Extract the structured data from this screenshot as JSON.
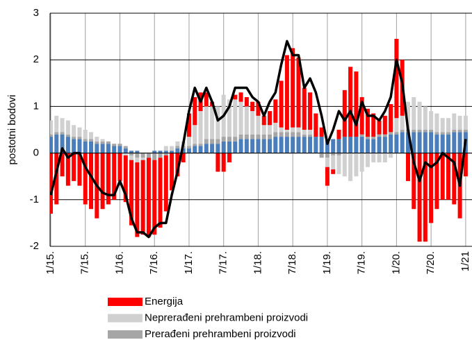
{
  "chart_data": {
    "type": "bar",
    "stacked": true,
    "y_label": "postotni bodovi",
    "ylim": [
      -2,
      3
    ],
    "yticks": [
      -2,
      -1,
      0,
      1,
      2,
      3
    ],
    "grid": true,
    "categories": [
      "1/15.",
      null,
      null,
      null,
      null,
      null,
      "7/15.",
      null,
      null,
      null,
      null,
      null,
      "1/16.",
      null,
      null,
      null,
      null,
      null,
      "7/16.",
      null,
      null,
      null,
      null,
      null,
      "1/17.",
      null,
      null,
      null,
      null,
      null,
      "7/17.",
      null,
      null,
      null,
      null,
      null,
      "1/18.",
      null,
      null,
      null,
      null,
      null,
      "7/18.",
      null,
      null,
      null,
      null,
      null,
      "1/19.",
      null,
      null,
      null,
      null,
      null,
      "7/19.",
      null,
      null,
      null,
      null,
      null,
      "1/20.",
      null,
      null,
      null,
      null,
      null,
      "7/20.",
      null,
      null,
      null,
      null,
      null,
      "1/21"
    ],
    "series": [
      {
        "color": "#4a7ebb",
        "values": [
          0.35,
          0.4,
          0.4,
          0.35,
          0.3,
          0.3,
          0.25,
          0.25,
          0.2,
          0.2,
          0.2,
          0.15,
          0.15,
          0.1,
          0.05,
          0.05,
          0,
          0,
          0.05,
          0.05,
          0.05,
          0.05,
          0.1,
          0.1,
          0.1,
          0.15,
          0.15,
          0.2,
          0.2,
          0.2,
          0.25,
          0.25,
          0.25,
          0.3,
          0.3,
          0.3,
          0.3,
          0.3,
          0.3,
          0.35,
          0.35,
          0.35,
          0.35,
          0.35,
          0.35,
          0.35,
          0.35,
          0.35,
          0.3,
          0.3,
          0.3,
          0.35,
          0.35,
          0.35,
          0.35,
          0.3,
          0.3,
          0.35,
          0.35,
          0.4,
          0.4,
          0.45,
          0.45,
          0.45,
          0.45,
          0.45,
          0.45,
          0.4,
          0.4,
          0.4,
          0.45,
          0.45,
          0.45
        ]
      },
      {
        "name": "Prerađeni prehrambeni proizvodi",
        "color": "#a6a6a6",
        "values": [
          0.05,
          0.05,
          0.05,
          0.05,
          0.05,
          0.05,
          0.05,
          0.05,
          0.05,
          0.05,
          0.05,
          0.05,
          0.05,
          0.05,
          -0.05,
          -0.1,
          -0.1,
          -0.1,
          -0.15,
          -0.1,
          -0.05,
          0,
          0.05,
          0.05,
          0.05,
          0.05,
          0.05,
          0.1,
          0.1,
          0.1,
          0.1,
          0.1,
          0.1,
          0.1,
          0.1,
          0.1,
          0.1,
          0.1,
          0.1,
          0.1,
          0.1,
          0.1,
          0.1,
          0.1,
          0.05,
          0.05,
          0,
          -0.1,
          -0.1,
          -0.05,
          -0.05,
          0,
          0,
          0,
          0.05,
          0.05,
          0.05,
          0.05,
          0.05,
          0.05,
          0.05,
          0.05,
          0.05,
          0.05,
          0.05,
          0.05,
          0.05,
          0.05,
          0.05,
          0.05,
          0.05,
          0.05,
          0.05
        ]
      },
      {
        "name": "Neprerađeni prehrambeni proizvodi",
        "color": "#d0d0d0",
        "values": [
          0.3,
          0.35,
          0.3,
          0.3,
          0.25,
          0.2,
          0.2,
          0.15,
          0.1,
          0.05,
          0,
          0,
          0,
          -0.05,
          -0.1,
          -0.1,
          -0.05,
          0,
          0,
          0,
          0.1,
          0.1,
          0.1,
          0.1,
          0.2,
          0.4,
          0.7,
          0.7,
          0.7,
          0.7,
          0.9,
          0.8,
          0.8,
          0.7,
          0.6,
          0.5,
          0.4,
          0.2,
          0.2,
          0.2,
          0.1,
          0.05,
          0.1,
          0.1,
          0.1,
          0.1,
          0,
          0,
          -0.2,
          -0.3,
          -0.4,
          -0.5,
          -0.6,
          -0.5,
          -0.4,
          -0.3,
          -0.2,
          -0.2,
          -0.2,
          -0.1,
          0.3,
          0.3,
          0.6,
          0.7,
          0.6,
          0.5,
          0.4,
          0.4,
          0.3,
          0.3,
          0.35,
          0.3,
          0.3
        ]
      },
      {
        "name": "Energija",
        "color": "#ff0000",
        "values": [
          -1.3,
          -1.1,
          -0.5,
          -0.7,
          -0.6,
          -0.7,
          -1.1,
          -1.2,
          -1.4,
          -1.2,
          -1.1,
          -1.0,
          -0.6,
          -1.0,
          -1.4,
          -1.6,
          -1.6,
          -1.7,
          -1.6,
          -1.5,
          -1.2,
          -0.8,
          -0.5,
          -0.2,
          0.5,
          0.6,
          0.4,
          0.3,
          0.1,
          -0.4,
          -0.4,
          -0.2,
          0.1,
          0.2,
          0.2,
          0.2,
          0.3,
          0.2,
          0.3,
          0.5,
          1.0,
          1.6,
          1.7,
          1.5,
          0.9,
          0.8,
          0.5,
          0.2,
          -0.4,
          -0.1,
          0.2,
          1.0,
          1.5,
          1.4,
          0.8,
          0.6,
          0.5,
          0.3,
          0.4,
          0.6,
          1.7,
          1.2,
          -0.6,
          -1.2,
          -1.9,
          -1.9,
          -1.5,
          -1.2,
          -1.0,
          -1.0,
          -1.1,
          -1.4,
          -0.5
        ]
      }
    ],
    "line": {
      "color": "#000000",
      "values": [
        -0.9,
        -0.4,
        0.1,
        -0.1,
        0.0,
        0.0,
        -0.3,
        -0.5,
        -0.7,
        -0.85,
        -0.9,
        -0.9,
        -0.6,
        -0.9,
        -1.4,
        -1.7,
        -1.7,
        -1.8,
        -1.6,
        -1.5,
        -1.5,
        -0.9,
        -0.4,
        0.2,
        0.9,
        1.4,
        1.1,
        1.4,
        1.1,
        0.7,
        0.8,
        1.0,
        1.4,
        1.4,
        1.4,
        1.2,
        1.1,
        0.8,
        1.1,
        1.3,
        1.9,
        2.4,
        2.1,
        2.1,
        1.4,
        1.6,
        1.3,
        0.8,
        0.2,
        0.5,
        0.9,
        0.7,
        0.9,
        0.6,
        1.1,
        0.8,
        0.8,
        0.7,
        0.9,
        1.2,
        2.0,
        1.5,
        0.5,
        -0.2,
        -0.6,
        -0.2,
        -0.3,
        -0.2,
        0.0,
        -0.1,
        -0.2,
        -0.7,
        0.3
      ]
    }
  }
}
